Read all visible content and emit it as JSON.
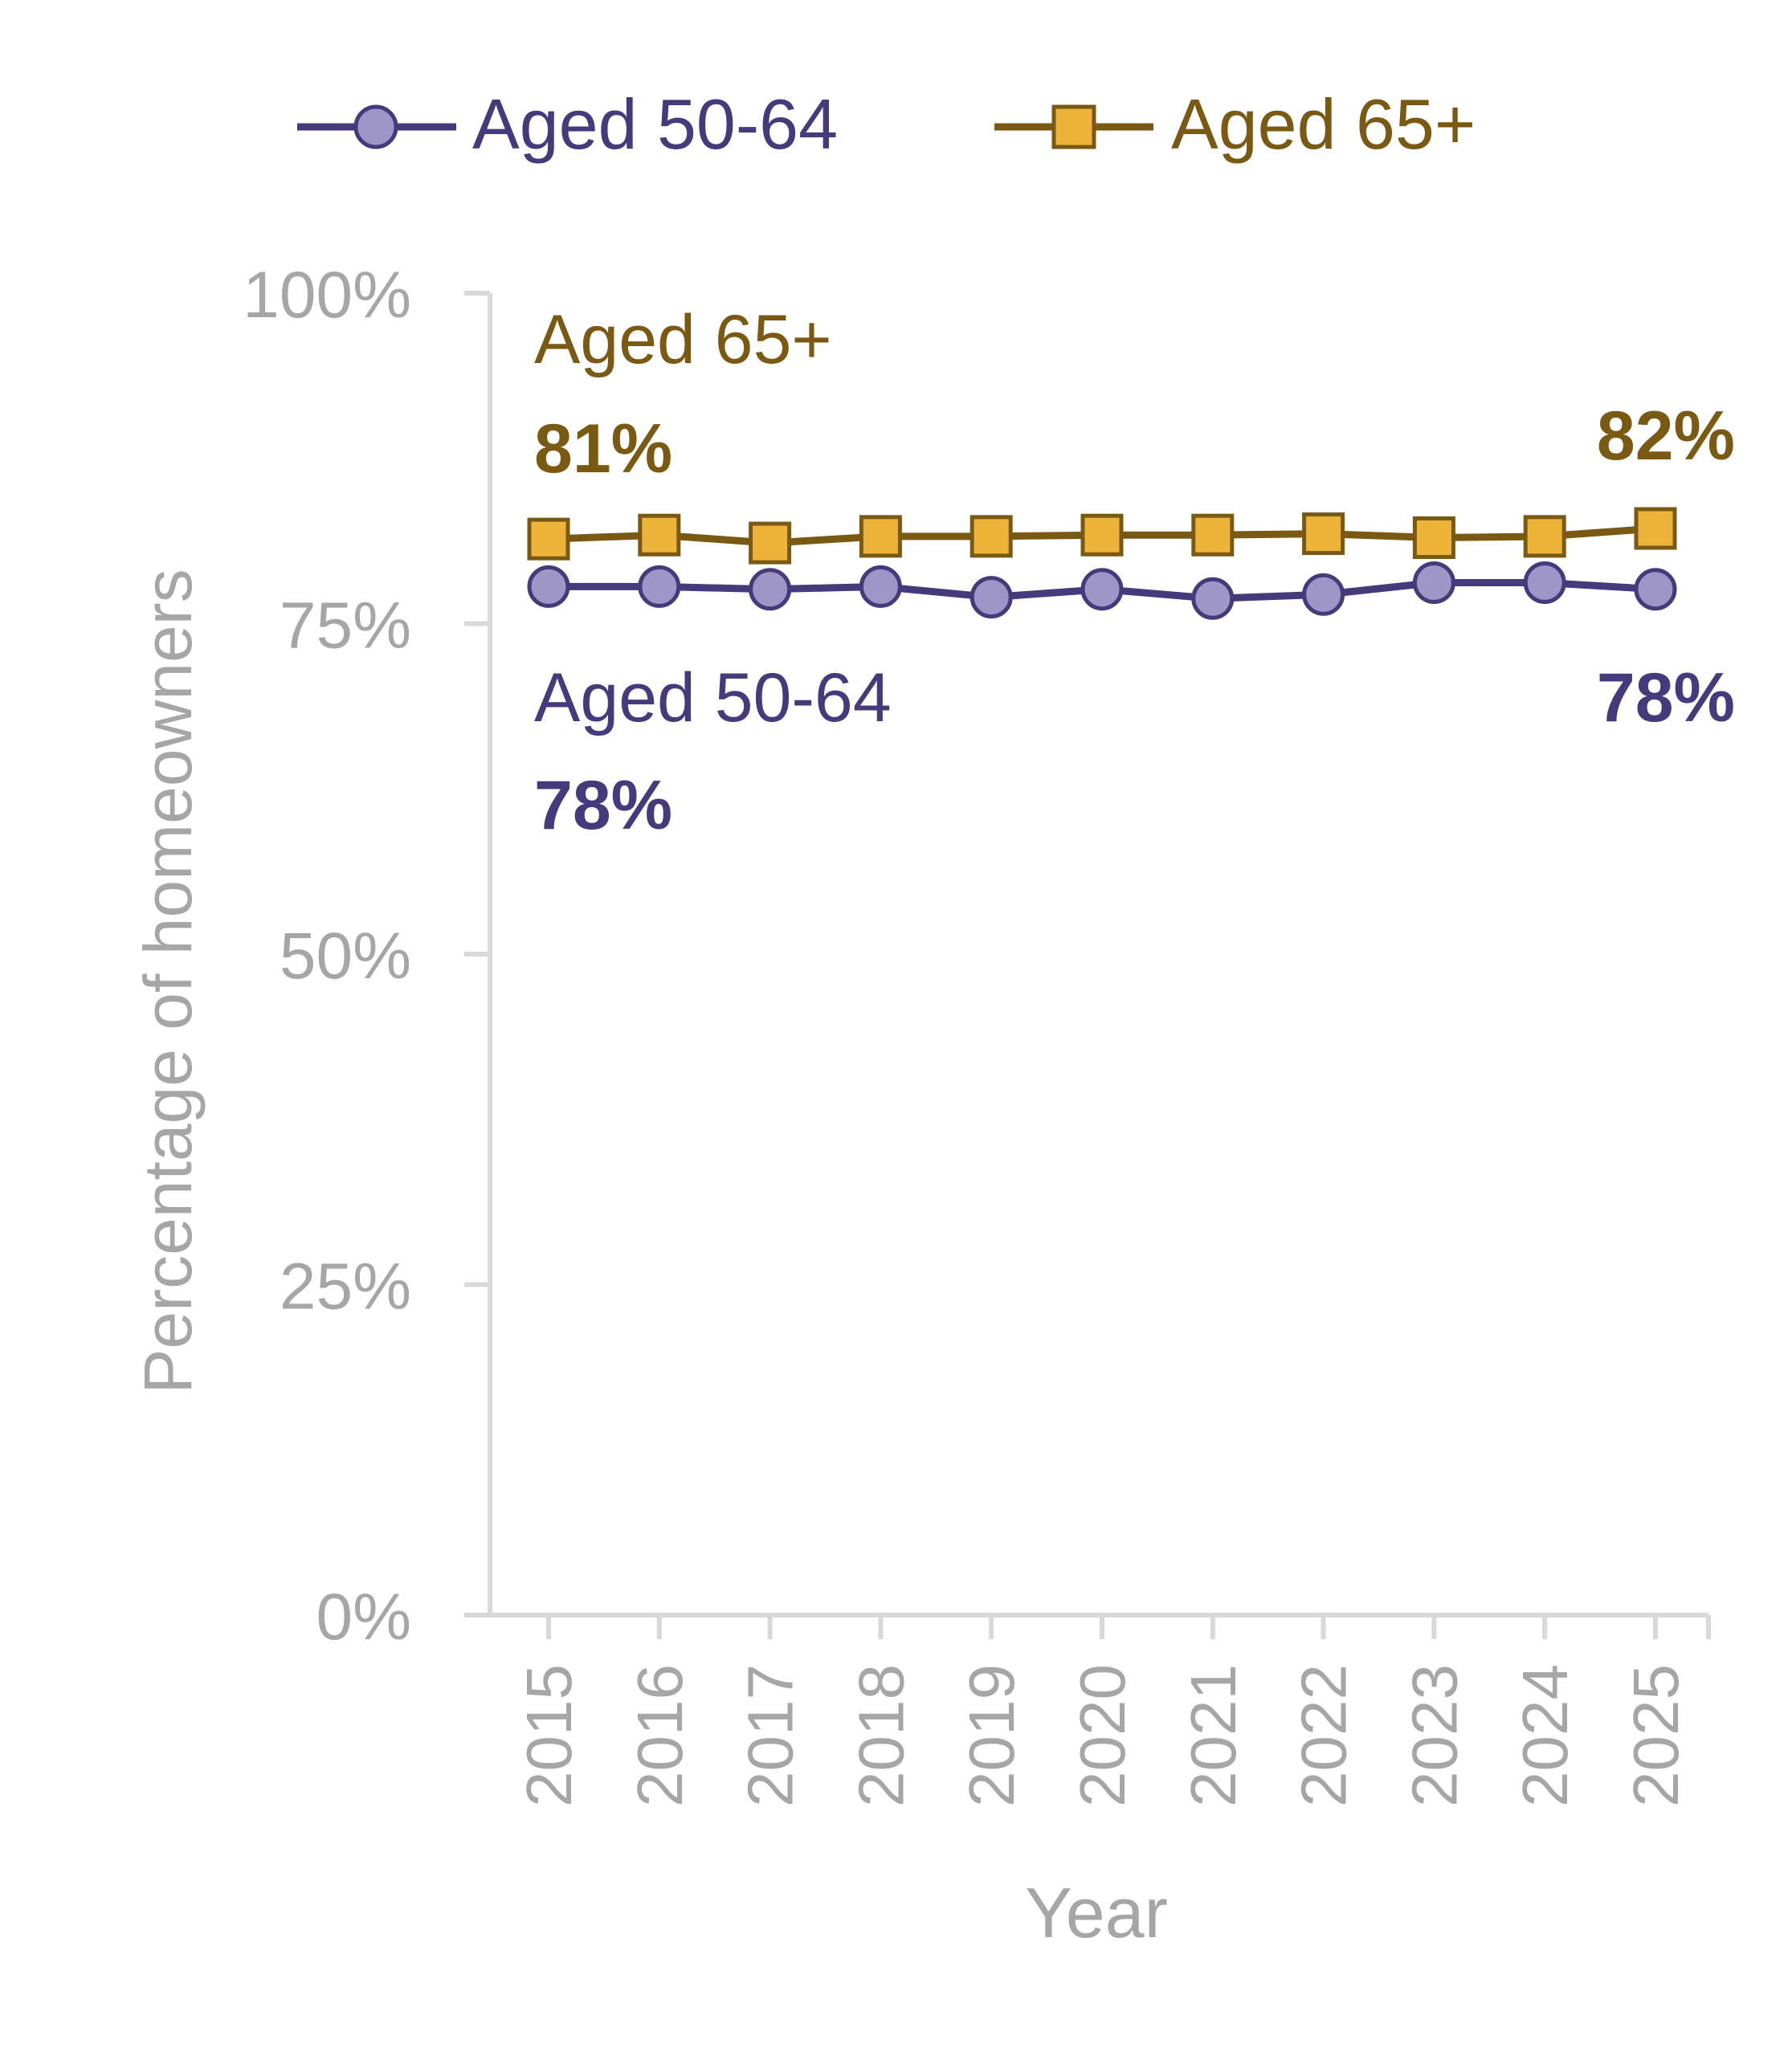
{
  "chart_data": {
    "type": "line",
    "title": "",
    "xlabel": "Year",
    "ylabel": "Percentage of homeowners",
    "x": [
      "2015",
      "2016",
      "2017",
      "2018",
      "2019",
      "2020",
      "2021",
      "2022",
      "2023",
      "2024",
      "2025"
    ],
    "ylim": [
      0,
      100
    ],
    "y_ticks": [
      "0%",
      "25%",
      "50%",
      "75%",
      "100%"
    ],
    "y_tick_values": [
      0,
      25,
      50,
      75,
      100
    ],
    "grid": false,
    "legend_position": "top-center",
    "series": [
      {
        "name": "Aged 50-64",
        "marker": "circle",
        "line_color": "#453a7b",
        "marker_fill": "#9d96c7",
        "values": [
          77.8,
          77.8,
          77.6,
          77.8,
          77.0,
          77.6,
          76.9,
          77.2,
          78.1,
          78.1,
          77.6
        ]
      },
      {
        "name": "Aged 65+",
        "marker": "square",
        "line_color": "#7a5a12",
        "marker_fill": "#eeb43a",
        "values": [
          81.4,
          81.7,
          81.1,
          81.6,
          81.6,
          81.7,
          81.7,
          81.8,
          81.5,
          81.6,
          82.2
        ]
      }
    ],
    "annotations": [
      {
        "series": "Aged 65+",
        "label": "Aged 65+",
        "value_label": "81%",
        "position": "start-above"
      },
      {
        "series": "Aged 65+",
        "value_label": "82%",
        "position": "end-above"
      },
      {
        "series": "Aged 50-64",
        "label": "Aged 50-64",
        "value_label": "78%",
        "position": "start-below"
      },
      {
        "series": "Aged 50-64",
        "value_label": "78%",
        "position": "end-below"
      }
    ]
  }
}
